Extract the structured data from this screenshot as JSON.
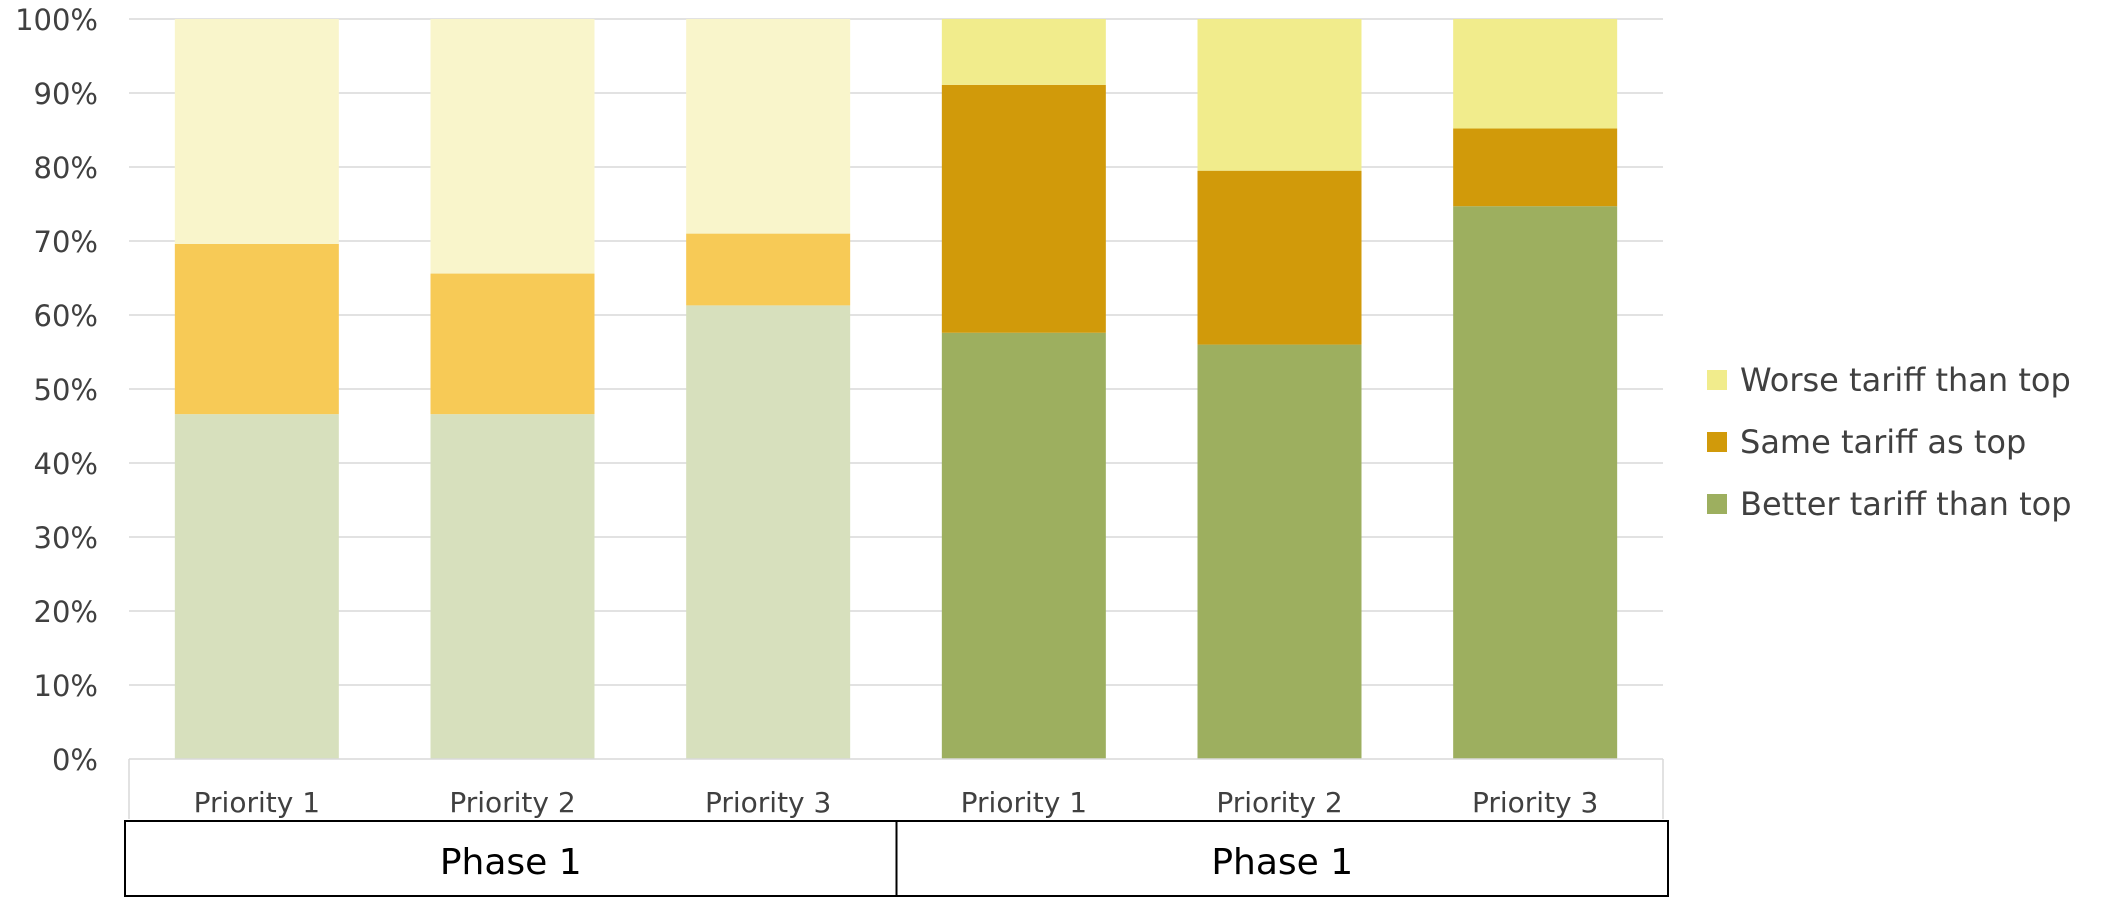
{
  "chart_data": {
    "type": "bar",
    "stacked": true,
    "stack_mode": "percent",
    "title": "",
    "xlabel": "",
    "ylabel": "",
    "ylim": [
      0,
      100
    ],
    "yticks": [
      "0%",
      "10%",
      "20%",
      "30%",
      "40%",
      "50%",
      "60%",
      "70%",
      "80%",
      "90%",
      "100%"
    ],
    "grid": true,
    "legend_position": "right",
    "categories": [
      "Priority 1",
      "Priority 2",
      "Priority 3",
      "Priority 1",
      "Priority 2",
      "Priority 3"
    ],
    "groups": [
      {
        "label": "Phase 1",
        "categories": [
          "Priority 1",
          "Priority 2",
          "Priority 3"
        ]
      },
      {
        "label": "Phase 1",
        "categories": [
          "Priority 1",
          "Priority 2",
          "Priority 3"
        ]
      }
    ],
    "series": [
      {
        "name": "Better tariff than top",
        "values": [
          46.6,
          46.6,
          61.3,
          57.6,
          56.0,
          74.7
        ],
        "colors": [
          "#d7e0bd",
          "#d7e0bd",
          "#d7e0bd",
          "#9daf5f",
          "#9daf5f",
          "#9daf5f"
        ]
      },
      {
        "name": "Same tariff as top",
        "values": [
          23.0,
          19.0,
          9.7,
          33.5,
          23.5,
          10.5
        ],
        "colors": [
          "#f7ca56",
          "#f7ca56",
          "#f7ca56",
          "#d19a0a",
          "#d19a0a",
          "#d19a0a"
        ]
      },
      {
        "name": "Worse tariff than top",
        "values": [
          30.4,
          34.4,
          29.0,
          8.9,
          20.5,
          14.8
        ],
        "colors": [
          "#f9f5cb",
          "#f9f5cb",
          "#f9f5cb",
          "#f1ec8c",
          "#f1ec8c",
          "#f1ec8c"
        ]
      }
    ],
    "legend": [
      {
        "name": "Worse tariff than top",
        "color": "#f1ec8c"
      },
      {
        "name": "Same tariff as top",
        "color": "#d19a0a"
      },
      {
        "name": "Better tariff than top",
        "color": "#9daf5f"
      }
    ]
  }
}
